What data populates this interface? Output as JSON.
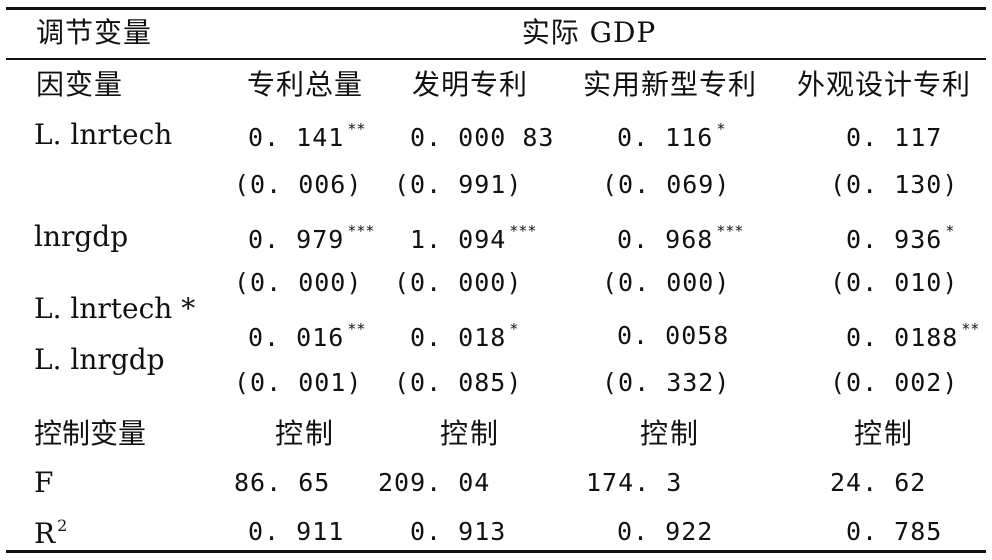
{
  "header": {
    "moderator_label": "调节变量",
    "moderator_value": "实际 GDP",
    "dependent_label": "因变量",
    "columns": [
      "专利总量",
      "发明专利",
      "实用新型专利",
      "外观设计专利"
    ]
  },
  "rows": {
    "l_lnrtech": {
      "label": "L. lnrtech",
      "coef": [
        "0. 141",
        "0. 000 83",
        "0. 116",
        "0. 117"
      ],
      "stars": [
        "**",
        "",
        "*",
        ""
      ],
      "pvals": [
        "(0. 006)",
        "(0. 991)",
        "(0. 069)",
        "(0. 130)"
      ]
    },
    "lnrgdp": {
      "label": "lnrgdp",
      "coef": [
        "0. 979",
        "1. 094",
        "0. 968",
        "0. 936"
      ],
      "stars": [
        "***",
        "***",
        "***",
        "*"
      ],
      "pvals": [
        "(0. 000)",
        "(0. 000)",
        "(0. 000)",
        "(0. 010)"
      ]
    },
    "interaction": {
      "label_line1": "L. lnrtech *",
      "label_line2": "L. lnrgdp",
      "coef": [
        "0. 016",
        "0. 018",
        "0. 0058",
        "0. 0188"
      ],
      "stars": [
        "**",
        "*",
        "",
        "**"
      ],
      "pvals": [
        "(0. 001)",
        "(0. 085)",
        "(0. 332)",
        "(0. 002)"
      ]
    },
    "controls": {
      "label": "控制变量",
      "values": [
        "控制",
        "控制",
        "控制",
        "控制"
      ]
    },
    "f_stat": {
      "label": "F",
      "values": [
        "86. 65",
        "209. 04",
        "174. 3",
        "24. 62"
      ]
    },
    "r2": {
      "label_base": "R",
      "label_sup": "2",
      "values": [
        "0. 911",
        "0. 913",
        "0. 922",
        "0. 785"
      ]
    }
  }
}
